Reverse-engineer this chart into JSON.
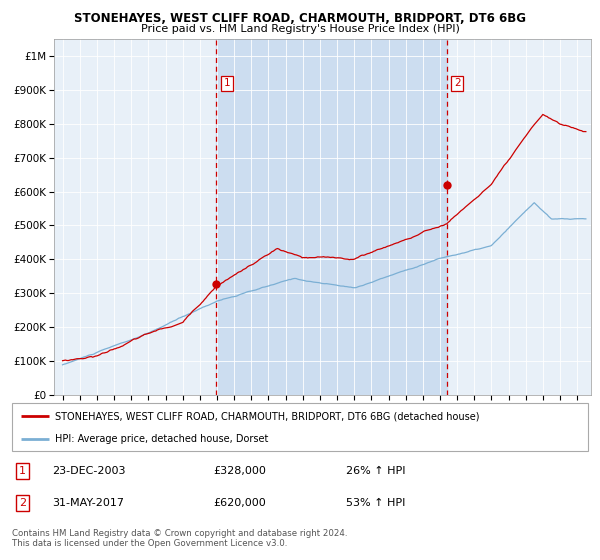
{
  "title": "STONEHAYES, WEST CLIFF ROAD, CHARMOUTH, BRIDPORT, DT6 6BG",
  "subtitle": "Price paid vs. HM Land Registry's House Price Index (HPI)",
  "ylabel_ticks": [
    "£0",
    "£100K",
    "£200K",
    "£300K",
    "£400K",
    "£500K",
    "£600K",
    "£700K",
    "£800K",
    "£900K",
    "£1M"
  ],
  "ytick_values": [
    0,
    100000,
    200000,
    300000,
    400000,
    500000,
    600000,
    700000,
    800000,
    900000,
    1000000
  ],
  "ylim": [
    0,
    1050000
  ],
  "xlim_start": 1994.5,
  "xlim_end": 2025.8,
  "background_color": "#ffffff",
  "plot_bg_color": "#ddeeff",
  "red_line_color": "#cc0000",
  "blue_line_color": "#7bafd4",
  "dashed_line_color": "#cc0000",
  "purchase1_x": 2003.97,
  "purchase1_y": 328000,
  "purchase2_x": 2017.41,
  "purchase2_y": 620000,
  "legend_label_red": "STONEHAYES, WEST CLIFF ROAD, CHARMOUTH, BRIDPORT, DT6 6BG (detached house)",
  "legend_label_blue": "HPI: Average price, detached house, Dorset",
  "table_rows": [
    [
      "1",
      "23-DEC-2003",
      "£328,000",
      "26% ↑ HPI"
    ],
    [
      "2",
      "31-MAY-2017",
      "£620,000",
      "53% ↑ HPI"
    ]
  ],
  "footer_text": "Contains HM Land Registry data © Crown copyright and database right 2024.\nThis data is licensed under the Open Government Licence v3.0.",
  "xtick_years": [
    1995,
    1996,
    1997,
    1998,
    1999,
    2000,
    2001,
    2002,
    2003,
    2004,
    2005,
    2006,
    2007,
    2008,
    2009,
    2010,
    2011,
    2012,
    2013,
    2014,
    2015,
    2016,
    2017,
    2018,
    2019,
    2020,
    2021,
    2022,
    2023,
    2024,
    2025
  ]
}
